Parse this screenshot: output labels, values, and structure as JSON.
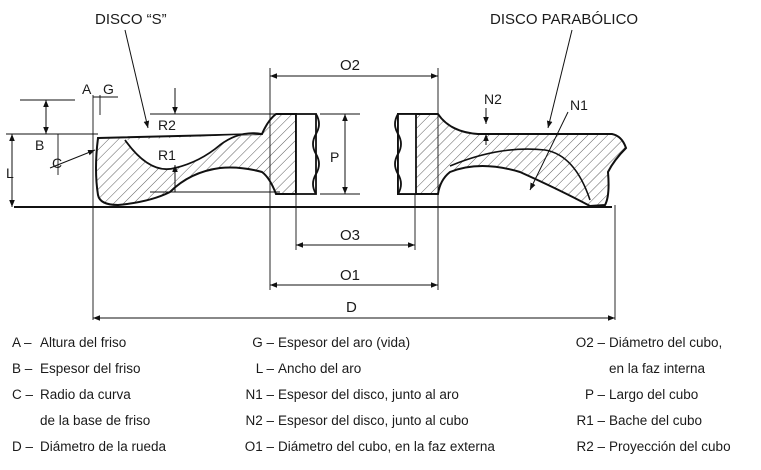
{
  "labels": {
    "disco_s": "DISCO “S”",
    "disco_parabolico": "DISCO PARABÓLICO",
    "A": "A",
    "G": "G",
    "B": "B",
    "C": "C",
    "L": "L",
    "R1": "R1",
    "R2": "R2",
    "P": "P",
    "N1": "N1",
    "N2": "N2",
    "O1": "O1",
    "O2": "O2",
    "O3": "O3",
    "D": "D"
  },
  "legend": {
    "col1": [
      {
        "code": "A –",
        "desc": "Altura del friso"
      },
      {
        "code": "B –",
        "desc": "Espesor del friso"
      },
      {
        "code": "C –",
        "desc": "Radio da curva"
      },
      {
        "code": "",
        "desc": "de la base de friso"
      },
      {
        "code": "D –",
        "desc": "Diámetro de la rueda"
      }
    ],
    "col2": [
      {
        "code": "G –",
        "desc": "Espesor del aro (vida)"
      },
      {
        "code": "L –",
        "desc": "Ancho del aro"
      },
      {
        "code": "N1 –",
        "desc": "Espesor del disco, junto al aro"
      },
      {
        "code": "N2 –",
        "desc": "Espesor del disco, junto al cubo"
      },
      {
        "code": "O1 –",
        "desc": "Diámetro del cubo, en la faz externa"
      }
    ],
    "col3": [
      {
        "code": "O2 –",
        "desc": "Diámetro del cubo,"
      },
      {
        "code": "",
        "desc": "en la faz interna"
      },
      {
        "code": "P –",
        "desc": "Largo del cubo"
      },
      {
        "code": "R1 –",
        "desc": "Bache del cubo"
      },
      {
        "code": "R2 –",
        "desc": "Proyección del cubo"
      }
    ]
  }
}
